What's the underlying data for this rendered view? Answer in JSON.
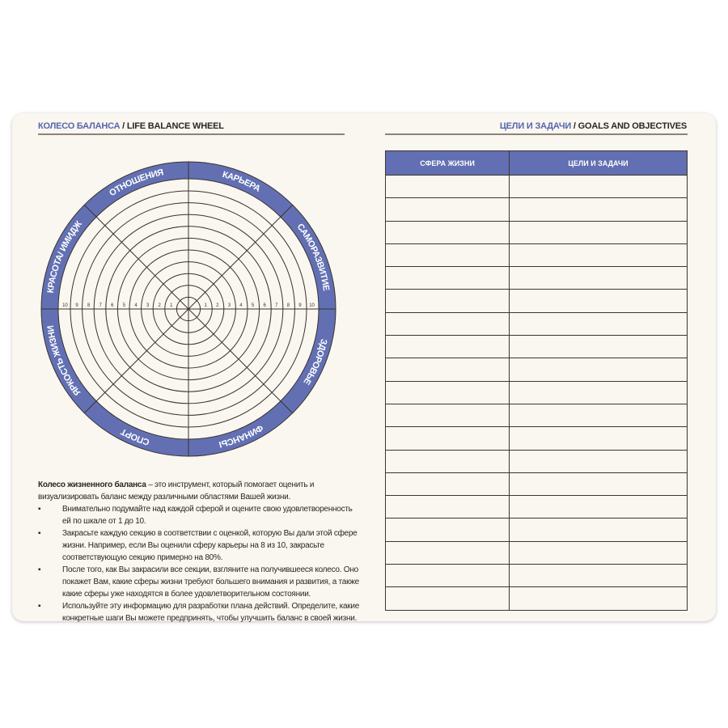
{
  "left": {
    "header": {
      "title_ru": "КОЛЕСО БАЛАНСА",
      "separator": " / ",
      "title_en": "LIFE BALANCE WHEEL"
    },
    "wheel": {
      "accent": "#6270b3",
      "sectors": [
        "КАРЬЕРА",
        "САМОРАЗВИТИЕ",
        "ЗДОРОВЬЕ",
        "ФИНАНСЫ",
        "СПОРТ",
        "ЯРКОСТЬ ЖИЗНИ",
        "КРАСОТА/ ИМИДЖ",
        "ОТНОШЕНИЯ"
      ],
      "scale": [
        "1",
        "2",
        "3",
        "4",
        "5",
        "6",
        "7",
        "8",
        "9",
        "10"
      ]
    },
    "intro": {
      "bold": "Колесо жизненного баланса",
      "rest": " – это инструмент, который помогает оценить и визуализировать баланс между различными областями Вашей жизни."
    },
    "bullets": [
      "Внимательно подумайте над каждой сферой и оцените свою удовлетворенность ей по шкале от 1 до 10.",
      "Закрасьте каждую секцию в соответствии с оценкой, которую Вы дали этой сфере жизни. Например, если Вы оценили сферу карьеры на 8 из 10, закрасьте соответствующую секцию примерно на 80%.",
      "После того, как Вы закрасили все секции, взгляните на получившееся колесо. Оно покажет Вам, какие сферы жизни требуют большего внимания и развития, а также какие сферы уже находятся в более удовлетворительном состоянии.",
      "Используйте эту информацию для разработки плана действий. Определите, какие конкретные шаги Вы можете предпринять, чтобы улучшить баланс в своей жизни."
    ],
    "bullet_glyph": "▪"
  },
  "right": {
    "header": {
      "title_ru": "ЦЕЛИ И ЗАДАЧИ",
      "separator": " / ",
      "title_en": "GOALS AND OBJECTIVES"
    },
    "table": {
      "columns": [
        "СФЕРА ЖИЗНИ",
        "ЦЕЛИ И ЗАДАЧИ"
      ],
      "empty_rows": 19
    }
  }
}
